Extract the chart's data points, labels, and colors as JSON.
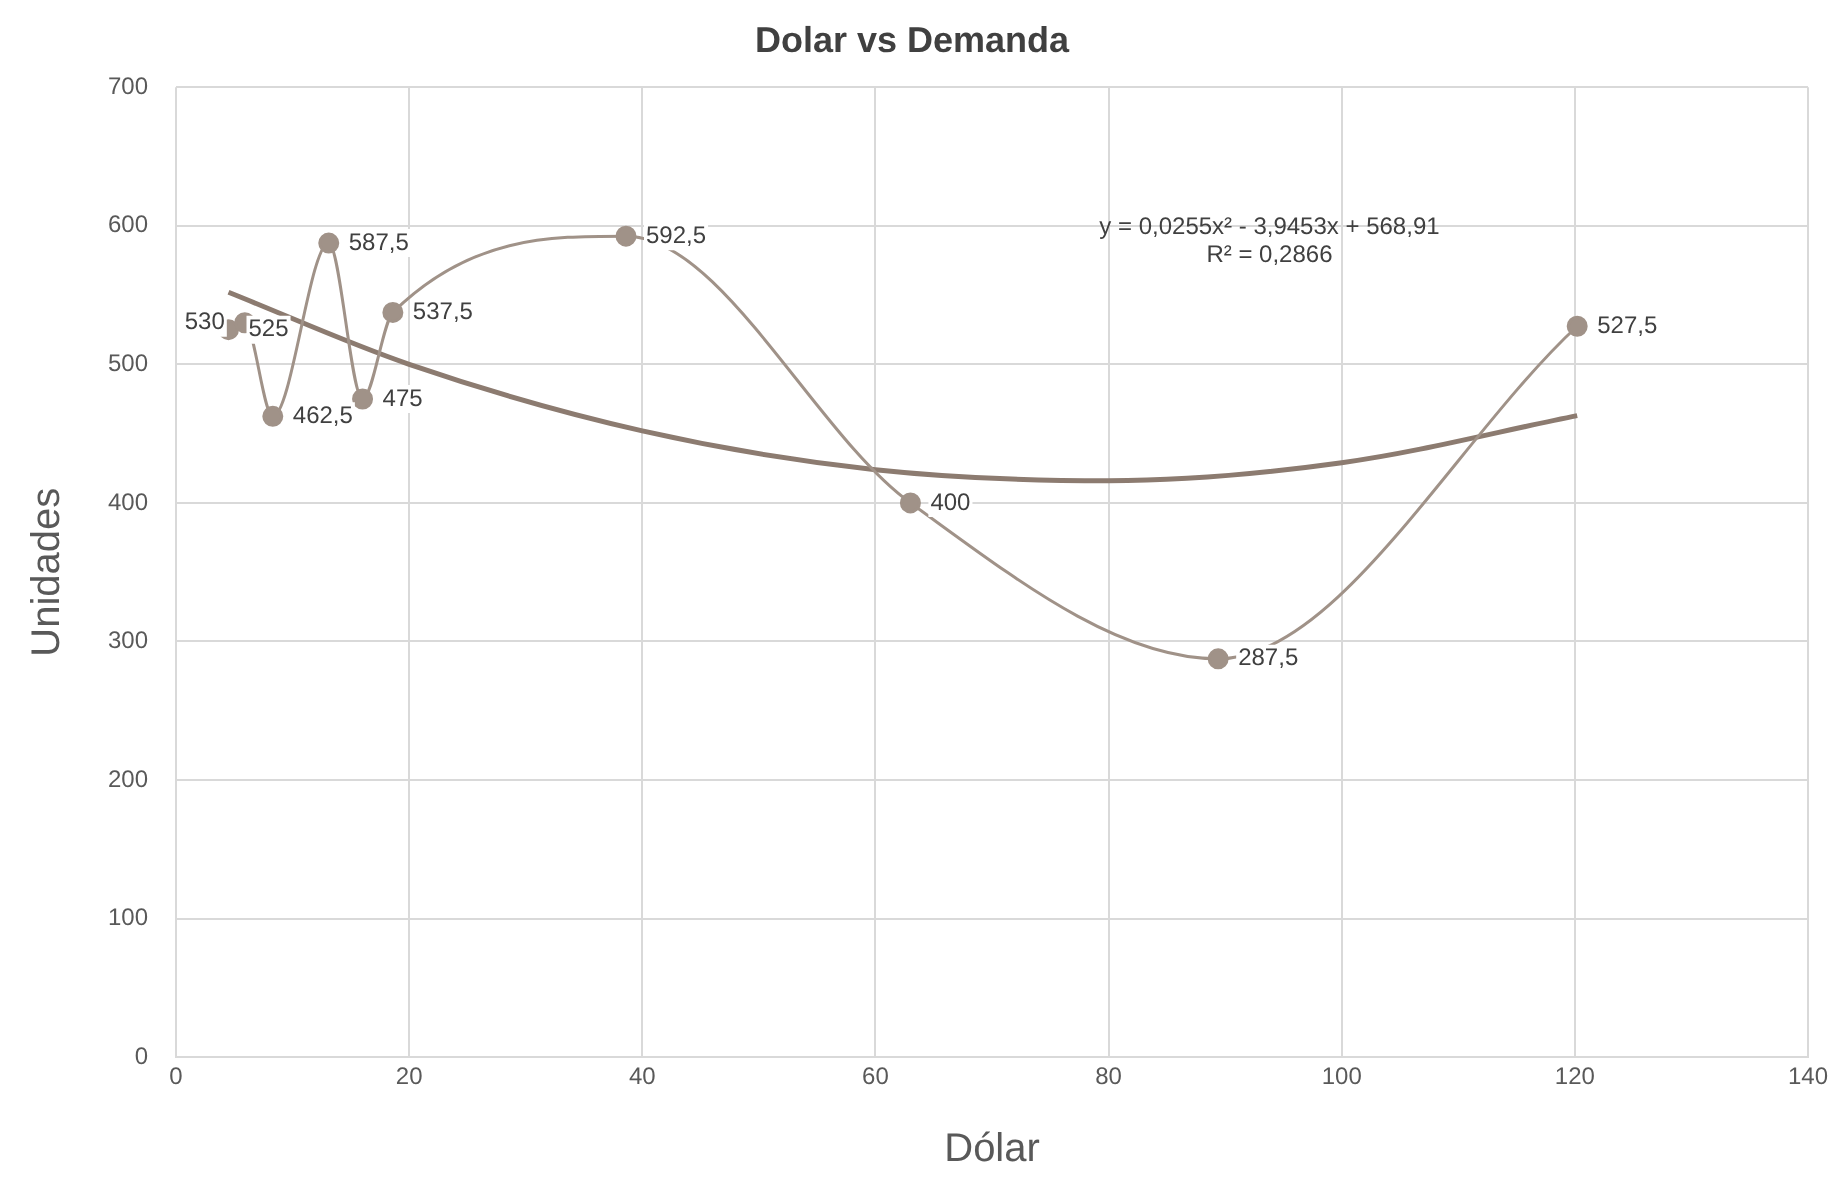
{
  "chart_data": {
    "type": "line",
    "title": "Dolar vs Demanda",
    "xlabel": "Dólar",
    "ylabel": "Unidades",
    "xlim": [
      0,
      140
    ],
    "xticks": [
      0,
      20,
      40,
      60,
      80,
      100,
      120,
      140
    ],
    "ylim": [
      0,
      700
    ],
    "yticks": [
      0,
      100,
      200,
      300,
      400,
      500,
      600,
      700
    ],
    "grid": true,
    "legend": false,
    "marker": "circle",
    "line_style": "solid",
    "annotations": [
      "y = 0,0255x² - 3,9453x + 568,91",
      "R² = 0,2866"
    ],
    "series": [
      {
        "color": "#a09288",
        "x": [
          4.5,
          5.9,
          8.3,
          13.1,
          16.0,
          18.6,
          38.6,
          63.0,
          89.4,
          120.2
        ],
        "values": [
          525,
          530,
          462.5,
          587.5,
          475,
          537.5,
          592.5,
          400,
          287.5,
          527.5
        ],
        "value_labels": [
          "525",
          "530",
          "462,5",
          "587,5",
          "475",
          "537,5",
          "592,5",
          "400",
          "287,5",
          "527,5"
        ]
      },
      {
        "type": "line",
        "marker": "none",
        "color": "#8c7b70",
        "x": [
          4.5,
          20,
          40,
          60,
          80,
          100,
          120.2
        ],
        "values": [
          552,
          500,
          452,
          424,
          416,
          429,
          463
        ]
      }
    ]
  }
}
